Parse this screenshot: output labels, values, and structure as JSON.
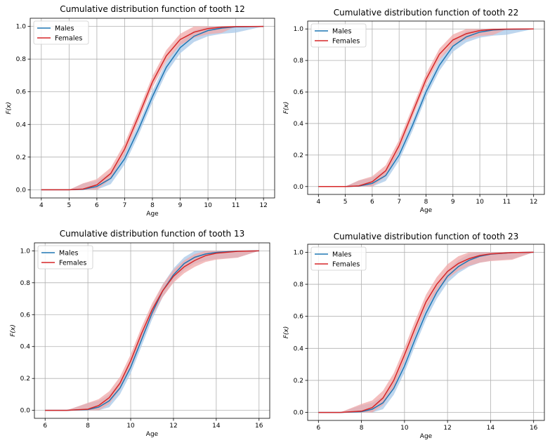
{
  "colors": {
    "males": "#1f77b4",
    "females": "#d62728",
    "band_males": "#a8c8e8",
    "band_females": "#f0a8a8"
  },
  "chart_data": [
    {
      "type": "line",
      "title": "Cumulative distribution function of tooth 12",
      "xlabel": "Age",
      "ylabel": "F(x)",
      "xlim": [
        3.6,
        12.4
      ],
      "ylim": [
        -0.05,
        1.05
      ],
      "xticks": [
        4,
        5,
        6,
        7,
        8,
        9,
        10,
        11,
        12
      ],
      "xtick_labels": [
        "4",
        "5",
        "6",
        "7",
        "8",
        "9",
        "10",
        "11",
        "12"
      ],
      "yticks": [
        0.0,
        0.2,
        0.4,
        0.6,
        0.8,
        1.0
      ],
      "ytick_labels": [
        "0.0",
        "0.2",
        "0.4",
        "0.6",
        "0.8",
        "1.0"
      ],
      "grid": true,
      "legend": "top-left",
      "series": [
        {
          "name": "Males",
          "x": [
            4,
            5,
            5.5,
            6,
            6.5,
            7,
            7.5,
            8,
            8.5,
            9,
            9.5,
            10,
            10.5,
            11,
            12
          ],
          "y": [
            0.0,
            0.0,
            0.003,
            0.02,
            0.07,
            0.19,
            0.37,
            0.57,
            0.75,
            0.87,
            0.94,
            0.975,
            0.99,
            0.997,
            1.0
          ],
          "band": 0.035
        },
        {
          "name": "Females",
          "x": [
            4,
            5,
            5.5,
            6,
            6.5,
            7,
            7.5,
            8,
            8.5,
            9,
            9.5,
            10,
            10.5,
            11,
            12
          ],
          "y": [
            0.0,
            0.0,
            0.004,
            0.03,
            0.1,
            0.25,
            0.45,
            0.66,
            0.82,
            0.92,
            0.965,
            0.987,
            0.996,
            0.999,
            1.0
          ],
          "band": 0.035
        }
      ]
    },
    {
      "type": "line",
      "title": "Cumulative distribution function of tooth 22",
      "xlabel": "Age",
      "ylabel": "F(x)",
      "xlim": [
        3.6,
        12.4
      ],
      "ylim": [
        -0.05,
        1.05
      ],
      "xticks": [
        4,
        5,
        6,
        7,
        8,
        9,
        10,
        11,
        12
      ],
      "xtick_labels": [
        "4",
        "5",
        "6",
        "7",
        "8",
        "9",
        "10",
        "11",
        "12"
      ],
      "yticks": [
        0.0,
        0.2,
        0.4,
        0.6,
        0.8,
        1.0
      ],
      "ytick_labels": [
        "0.0",
        "0.2",
        "0.4",
        "0.6",
        "0.8",
        "1.0"
      ],
      "grid": true,
      "legend": "top-left",
      "series": [
        {
          "name": "Males",
          "x": [
            4,
            5,
            5.5,
            6,
            6.5,
            7,
            7.5,
            8,
            8.5,
            9,
            9.5,
            10,
            10.5,
            11,
            12
          ],
          "y": [
            0.0,
            0.0,
            0.003,
            0.02,
            0.07,
            0.2,
            0.39,
            0.6,
            0.77,
            0.89,
            0.95,
            0.98,
            0.993,
            0.998,
            1.0
          ],
          "band": 0.035
        },
        {
          "name": "Females",
          "x": [
            4,
            5,
            5.5,
            6,
            6.5,
            7,
            7.5,
            8,
            8.5,
            9,
            9.5,
            10,
            10.5,
            11,
            12
          ],
          "y": [
            0.0,
            0.0,
            0.004,
            0.03,
            0.1,
            0.26,
            0.47,
            0.68,
            0.84,
            0.93,
            0.97,
            0.99,
            0.997,
            0.999,
            1.0
          ],
          "band": 0.035
        }
      ]
    },
    {
      "type": "line",
      "title": "Cumulative distribution function of tooth 13",
      "xlabel": "Age",
      "ylabel": "F(x)",
      "xlim": [
        5.5,
        16.5
      ],
      "ylim": [
        -0.05,
        1.05
      ],
      "xticks": [
        6,
        8,
        10,
        12,
        14,
        16
      ],
      "xtick_labels": [
        "6",
        "8",
        "10",
        "12",
        "14",
        "16"
      ],
      "yticks": [
        0.0,
        0.2,
        0.4,
        0.6,
        0.8,
        1.0
      ],
      "ytick_labels": [
        "0.0",
        "0.2",
        "0.4",
        "0.6",
        "0.8",
        "1.0"
      ],
      "grid": true,
      "legend": "top-left",
      "series": [
        {
          "name": "Males",
          "x": [
            6,
            7,
            8,
            8.5,
            9,
            9.5,
            10,
            10.5,
            11,
            11.5,
            12,
            12.5,
            13,
            13.5,
            14,
            15,
            16
          ],
          "y": [
            0.0,
            0.0,
            0.005,
            0.02,
            0.06,
            0.14,
            0.27,
            0.44,
            0.61,
            0.75,
            0.85,
            0.92,
            0.96,
            0.98,
            0.99,
            0.998,
            1.0
          ],
          "band": 0.04
        },
        {
          "name": "Females",
          "x": [
            6,
            7,
            8,
            8.5,
            9,
            9.5,
            10,
            10.5,
            11,
            11.5,
            12,
            12.5,
            13,
            13.5,
            14,
            15,
            16
          ],
          "y": [
            0.0,
            0.0,
            0.007,
            0.03,
            0.08,
            0.17,
            0.31,
            0.48,
            0.63,
            0.75,
            0.84,
            0.9,
            0.94,
            0.97,
            0.985,
            0.997,
            1.0
          ],
          "band": 0.04
        }
      ]
    },
    {
      "type": "line",
      "title": "Cumulative distribution function of tooth 23",
      "xlabel": "Age",
      "ylabel": "F(x)",
      "xlim": [
        5.5,
        16.5
      ],
      "ylim": [
        -0.05,
        1.05
      ],
      "xticks": [
        6,
        8,
        10,
        12,
        14,
        16
      ],
      "xtick_labels": [
        "6",
        "8",
        "10",
        "12",
        "14",
        "16"
      ],
      "yticks": [
        0.0,
        0.2,
        0.4,
        0.6,
        0.8,
        1.0
      ],
      "ytick_labels": [
        "0.0",
        "0.2",
        "0.4",
        "0.6",
        "0.8",
        "1.0"
      ],
      "grid": true,
      "legend": "top-left",
      "series": [
        {
          "name": "Males",
          "x": [
            6,
            7,
            8,
            8.5,
            9,
            9.5,
            10,
            10.5,
            11,
            11.5,
            12,
            12.5,
            13,
            13.5,
            14,
            15,
            16
          ],
          "y": [
            0.0,
            0.0,
            0.005,
            0.02,
            0.06,
            0.15,
            0.29,
            0.46,
            0.62,
            0.75,
            0.85,
            0.91,
            0.95,
            0.975,
            0.988,
            0.998,
            1.0
          ],
          "band": 0.04
        },
        {
          "name": "Females",
          "x": [
            6,
            7,
            8,
            8.5,
            9,
            9.5,
            10,
            10.5,
            11,
            11.5,
            12,
            12.5,
            13,
            13.5,
            14,
            15,
            16
          ],
          "y": [
            0.0,
            0.0,
            0.008,
            0.03,
            0.09,
            0.2,
            0.36,
            0.53,
            0.69,
            0.8,
            0.88,
            0.93,
            0.96,
            0.98,
            0.99,
            0.998,
            1.0
          ],
          "band": 0.045
        }
      ]
    }
  ]
}
